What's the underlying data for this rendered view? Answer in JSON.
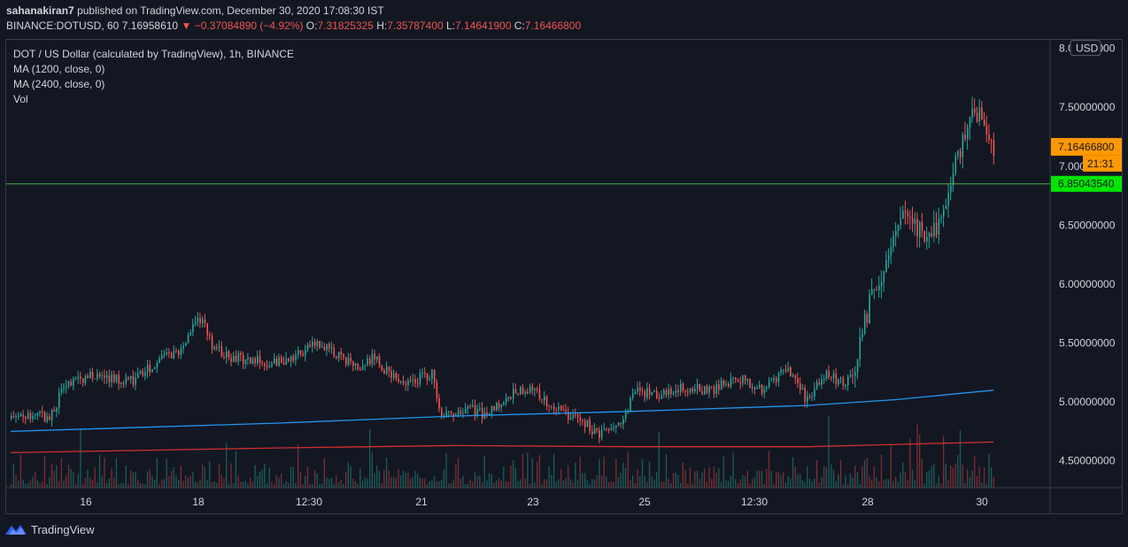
{
  "header": {
    "author": "sahanakiran7",
    "published": "published on TradingView.com, December 30, 2020 17:08:30 IST",
    "symbol": "BINANCE:DOTUSD, 60",
    "last": "7.16958610",
    "change": "−0.37084890 (−4.92%)",
    "o_label": "O:",
    "o_value": "7.31825325",
    "h_label": "H:",
    "h_value": "7.35787400",
    "l_label": "L:",
    "l_value": "7.14641900",
    "c_label": "C:",
    "c_value": "7.16466800"
  },
  "legend": {
    "title": "DOT / US Dollar (calculated by TradingView), 1h, BINANCE",
    "ma1": "MA (1200, close, 0)",
    "ma2": "MA (2400, close, 0)",
    "vol": "Vol"
  },
  "footer": {
    "brand": "TradingView"
  },
  "colors": {
    "background": "#131722",
    "up": "#26a69a",
    "down": "#ef5350",
    "ma_blue": "#2196f3",
    "ma_red": "#d32f2f",
    "hline": "#4caf50",
    "price_tag": "#ff9800",
    "hline_tag": "#00e600"
  },
  "chart_data": {
    "type": "candlestick",
    "title": "DOT / US Dollar (calculated by TradingView), 1h, BINANCE",
    "currency": "USD",
    "ylim": [
      4.25,
      8.05
    ],
    "y_ticks": [
      "8.00000000",
      "7.50000000",
      "7.00000000",
      "6.50000000",
      "6.00000000",
      "5.50000000",
      "5.00000000",
      "4.50000000"
    ],
    "y_tick_values": [
      8.0,
      7.5,
      7.0,
      6.5,
      6.0,
      5.5,
      5.0,
      4.5
    ],
    "x_tick_labels": [
      "16",
      "18",
      "12:30",
      "21",
      "23",
      "25",
      "12:30",
      "28",
      "30"
    ],
    "x_tick_bar_index": [
      0.085,
      0.212,
      0.337,
      0.464,
      0.59,
      0.716,
      0.84,
      0.968,
      1.097
    ],
    "current_price_label": "7.16466800",
    "current_price": 7.164668,
    "countdown_label": "21:31",
    "horizontal_line_value": 6.8504354,
    "horizontal_line_label": "6.85043540",
    "price_path": [
      [
        0.0,
        4.86
      ],
      [
        0.045,
        4.88
      ],
      [
        0.06,
        5.15
      ],
      [
        0.09,
        5.22
      ],
      [
        0.115,
        5.2
      ],
      [
        0.14,
        5.18
      ],
      [
        0.165,
        5.35
      ],
      [
        0.19,
        5.42
      ],
      [
        0.205,
        5.66
      ],
      [
        0.215,
        5.7
      ],
      [
        0.225,
        5.5
      ],
      [
        0.245,
        5.38
      ],
      [
        0.27,
        5.36
      ],
      [
        0.3,
        5.34
      ],
      [
        0.325,
        5.4
      ],
      [
        0.345,
        5.5
      ],
      [
        0.36,
        5.44
      ],
      [
        0.39,
        5.3
      ],
      [
        0.41,
        5.38
      ],
      [
        0.43,
        5.2
      ],
      [
        0.455,
        5.18
      ],
      [
        0.475,
        5.25
      ],
      [
        0.485,
        4.85
      ],
      [
        0.51,
        4.95
      ],
      [
        0.535,
        4.9
      ],
      [
        0.56,
        5.05
      ],
      [
        0.585,
        5.12
      ],
      [
        0.605,
        5.0
      ],
      [
        0.625,
        4.9
      ],
      [
        0.65,
        4.82
      ],
      [
        0.66,
        4.72
      ],
      [
        0.685,
        4.78
      ],
      [
        0.705,
        5.1
      ],
      [
        0.73,
        5.05
      ],
      [
        0.76,
        5.12
      ],
      [
        0.79,
        5.1
      ],
      [
        0.82,
        5.2
      ],
      [
        0.85,
        5.1
      ],
      [
        0.875,
        5.3
      ],
      [
        0.9,
        5.0
      ],
      [
        0.92,
        5.25
      ],
      [
        0.94,
        5.15
      ],
      [
        0.955,
        5.35
      ],
      [
        0.965,
        5.7
      ],
      [
        0.975,
        6.0
      ],
      [
        0.99,
        6.2
      ],
      [
        1.005,
        6.6
      ],
      [
        1.02,
        6.5
      ],
      [
        1.04,
        6.4
      ],
      [
        1.055,
        6.7
      ],
      [
        1.07,
        7.1
      ],
      [
        1.085,
        7.55
      ],
      [
        1.1,
        7.3
      ],
      [
        1.11,
        7.16
      ]
    ],
    "ma_1200_path": [
      [
        0.0,
        4.75
      ],
      [
        0.3,
        4.82
      ],
      [
        0.5,
        4.88
      ],
      [
        0.7,
        4.92
      ],
      [
        0.9,
        4.97
      ],
      [
        1.0,
        5.02
      ],
      [
        1.11,
        5.1
      ]
    ],
    "ma_2400_path": [
      [
        0.0,
        4.57
      ],
      [
        0.3,
        4.61
      ],
      [
        0.5,
        4.63
      ],
      [
        0.7,
        4.62
      ],
      [
        0.9,
        4.62
      ],
      [
        1.0,
        4.64
      ],
      [
        1.11,
        4.66
      ]
    ]
  }
}
